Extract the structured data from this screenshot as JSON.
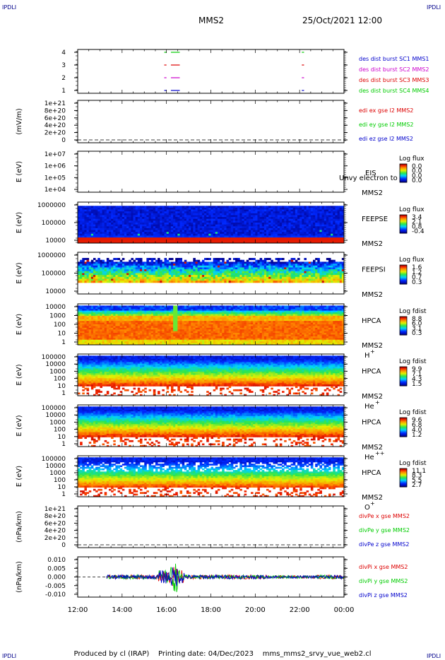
{
  "header": {
    "corner_label": "IPDLI",
    "spacecraft": "MMS2",
    "datetime": "25/Oct/2021 12:00"
  },
  "footer": {
    "produced_by": "Produced by cl (IRAP)",
    "printing_date": "Printing date: 04/Dec/2023",
    "file": "mms_mms2_srvy_vue_web2.cl"
  },
  "colors": {
    "mms1": "#0000cc",
    "mms2": "#cc00cc",
    "mms3": "#dd0000",
    "mms4": "#00cc00",
    "x": "#dd0000",
    "y": "#00cc00",
    "z": "#0000cc"
  },
  "chart_data": [
    {
      "type": "line",
      "id": "burst",
      "ylabel": "",
      "yticks": [
        "1",
        "2",
        "3",
        "4"
      ],
      "series": [
        {
          "name": "des dist burst SC1 MMS1",
          "color": "#0000cc",
          "value": 1,
          "segments": [
            [
              15.9,
              16.0
            ],
            [
              16.2,
              16.6
            ],
            [
              22.1,
              22.2
            ]
          ]
        },
        {
          "name": "des dist burst SC2 MMS2",
          "color": "#cc00cc",
          "value": 2,
          "segments": [
            [
              15.9,
              16.0
            ],
            [
              16.2,
              16.6
            ],
            [
              22.1,
              22.2
            ]
          ]
        },
        {
          "name": "des dist burst SC3 MMS3",
          "color": "#dd0000",
          "value": 3,
          "segments": [
            [
              15.9,
              16.0
            ],
            [
              16.2,
              16.6
            ],
            [
              22.1,
              22.2
            ]
          ]
        },
        {
          "name": "des dist burst SC4 MMS4",
          "color": "#00cc00",
          "value": 4,
          "segments": [
            [
              15.9,
              16.0
            ],
            [
              16.2,
              16.6
            ],
            [
              22.1,
              22.2
            ]
          ]
        }
      ]
    },
    {
      "type": "line",
      "id": "edi",
      "ylabel": "(mV/m)",
      "yticks": [
        "0",
        "2e+20",
        "4e+20",
        "6e+20",
        "8e+20",
        "1e+21"
      ],
      "series": [
        {
          "name": "edi ex gse l2 MMS2",
          "color": "#dd0000"
        },
        {
          "name": "edi ey gse l2 MMS2",
          "color": "#00cc00"
        },
        {
          "name": "edi ez gse l2 MMS2",
          "color": "#0000cc"
        }
      ]
    },
    {
      "type": "heatmap",
      "id": "eis",
      "ylabel": "E (eV)",
      "yticks": [
        "1e+04",
        "1e+05",
        "1e+06",
        "1e+07"
      ],
      "instrument": [
        "EIS",
        "MMS2"
      ],
      "overlay_text": "Unvy electron to",
      "colorbar": {
        "title": "Log flux",
        "ticks": [
          "0.0",
          "0.0",
          "0.0",
          "0.0"
        ]
      },
      "empty": true
    },
    {
      "type": "heatmap",
      "id": "feepse",
      "ylabel": "E (eV)",
      "yticks": [
        "10000",
        "100000",
        "1000000"
      ],
      "instrument": [
        "FEEPSE",
        "MMS2"
      ],
      "colorbar": {
        "title": "Log flux",
        "ticks": [
          "3.4",
          "2.1",
          "0.8",
          "-0.4"
        ]
      }
    },
    {
      "type": "heatmap",
      "id": "feepsi",
      "ylabel": "E (eV)",
      "yticks": [
        "10000",
        "100000",
        "1000000"
      ],
      "instrument": [
        "FEEPSI",
        "MMS2"
      ],
      "colorbar": {
        "title": "Log flux",
        "ticks": [
          "1.6",
          "1.2",
          "0.7",
          "0.3"
        ]
      }
    },
    {
      "type": "heatmap",
      "id": "hpca_h",
      "ylabel": "E (eV)",
      "yticks": [
        "1",
        "10",
        "100",
        "1000",
        "10000"
      ],
      "instrument": [
        "HPCA",
        "MMS2"
      ],
      "species": "H",
      "charge": "+",
      "colorbar": {
        "title": "Log fdist",
        "ticks": [
          "8.8",
          "6.0",
          "3.1",
          "0.3"
        ]
      }
    },
    {
      "type": "heatmap",
      "id": "hpca_he1",
      "ylabel": "E (eV)",
      "yticks": [
        "1",
        "10",
        "100",
        "1000",
        "10000",
        "100000"
      ],
      "instrument": [
        "HPCA",
        "MMS2"
      ],
      "species": "He",
      "charge": "+",
      "colorbar": {
        "title": "Log fdist",
        "ticks": [
          "9.9",
          "7.1",
          "4.3",
          "1.5"
        ]
      }
    },
    {
      "type": "heatmap",
      "id": "hpca_he2",
      "ylabel": "E (eV)",
      "yticks": [
        "1",
        "10",
        "100",
        "1000",
        "10000",
        "100000"
      ],
      "instrument": [
        "HPCA",
        "MMS2"
      ],
      "species": "He",
      "charge": "++",
      "colorbar": {
        "title": "Log fdist",
        "ticks": [
          "9.6",
          "6.8",
          "4.0",
          "1.2"
        ]
      }
    },
    {
      "type": "heatmap",
      "id": "hpca_o",
      "ylabel": "E (eV)",
      "yticks": [
        "1",
        "10",
        "100",
        "1000",
        "10000",
        "100000"
      ],
      "instrument": [
        "HPCA",
        "MMS2"
      ],
      "species": "O",
      "charge": "+",
      "colorbar": {
        "title": "Log fdist",
        "ticks": [
          "11.1",
          "8.3",
          "5.5",
          "2.7"
        ]
      }
    },
    {
      "type": "line",
      "id": "divpe",
      "ylabel": "(nPa/km)",
      "yticks": [
        "0",
        "2e+20",
        "4e+20",
        "6e+20",
        "8e+20",
        "1e+21"
      ],
      "series": [
        {
          "name": "divPe x gse MMS2",
          "color": "#dd0000"
        },
        {
          "name": "divPe y gse MMS2",
          "color": "#00cc00"
        },
        {
          "name": "divPe z gse MMS2",
          "color": "#0000cc"
        }
      ]
    },
    {
      "type": "line",
      "id": "divpi",
      "ylabel": "(nPa/km)",
      "yticks": [
        "-0.010",
        "-0.005",
        "0.000",
        "0.005",
        "0.010"
      ],
      "ylim": [
        -0.012,
        0.012
      ],
      "series": [
        {
          "name": "divPi x gse MMS2",
          "color": "#dd0000"
        },
        {
          "name": "divPi y gse MMS2",
          "color": "#00cc00"
        },
        {
          "name": "divPi z gse MMS2",
          "color": "#0000cc"
        }
      ]
    }
  ],
  "xaxis": {
    "ticks": [
      "12:00",
      "14:00",
      "16:00",
      "18:00",
      "20:00",
      "22:00",
      "00:00"
    ],
    "range_hours": [
      12,
      24
    ]
  }
}
